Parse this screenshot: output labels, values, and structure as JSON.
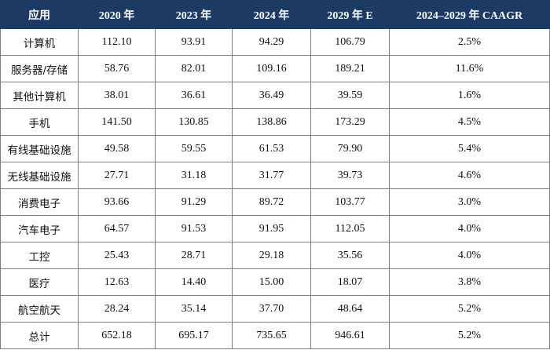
{
  "table": {
    "headers": [
      "应用",
      "2020 年",
      "2023 年",
      "2024 年",
      "2029 年 E",
      "2024–2029 年 CAAGR"
    ],
    "rows": [
      [
        "计算机",
        "112.10",
        "93.91",
        "94.29",
        "106.79",
        "2.5%"
      ],
      [
        "服务器/存储",
        "58.76",
        "82.01",
        "109.16",
        "189.21",
        "11.6%"
      ],
      [
        "其他计算机",
        "38.01",
        "36.61",
        "36.49",
        "39.59",
        "1.6%"
      ],
      [
        "手机",
        "141.50",
        "130.85",
        "138.86",
        "173.29",
        "4.5%"
      ],
      [
        "有线基础设施",
        "49.58",
        "59.55",
        "61.53",
        "79.90",
        "5.4%"
      ],
      [
        "无线基础设施",
        "27.71",
        "31.18",
        "31.77",
        "39.73",
        "4.6%"
      ],
      [
        "消费电子",
        "93.66",
        "91.29",
        "89.72",
        "103.77",
        "3.0%"
      ],
      [
        "汽车电子",
        "64.57",
        "91.53",
        "91.95",
        "112.05",
        "4.0%"
      ],
      [
        "工控",
        "25.43",
        "28.71",
        "29.18",
        "35.56",
        "4.0%"
      ],
      [
        "医疗",
        "12.63",
        "14.40",
        "15.00",
        "18.07",
        "3.8%"
      ],
      [
        "航空航天",
        "28.24",
        "35.14",
        "37.70",
        "48.64",
        "5.2%"
      ],
      [
        "总计",
        "652.18",
        "695.17",
        "735.65",
        "946.61",
        "5.2%"
      ]
    ]
  },
  "colors": {
    "header_bg": "#1c3a64",
    "header_text": "#ffffff",
    "grid": "#7f7f7f"
  }
}
